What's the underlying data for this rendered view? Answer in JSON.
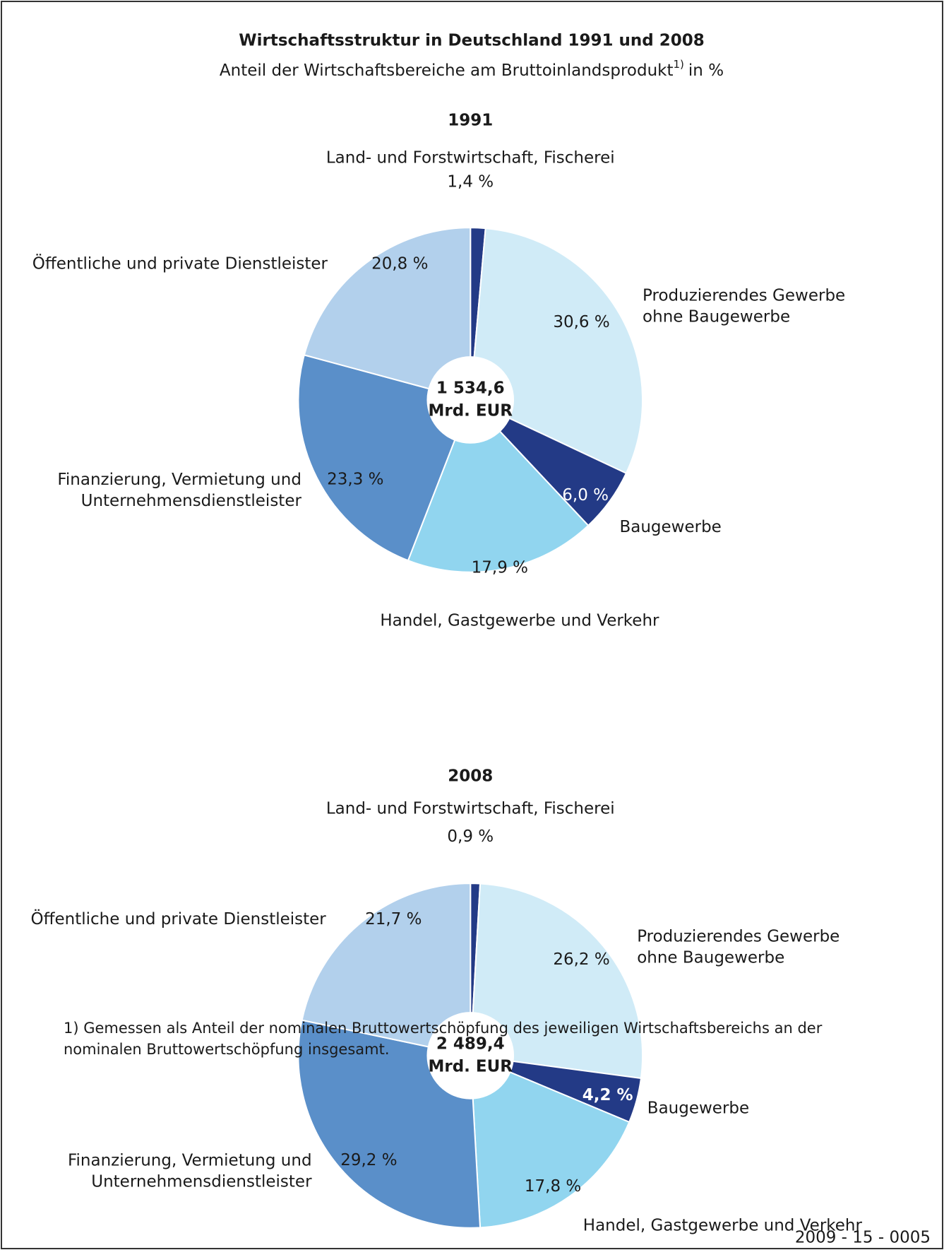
{
  "title": "Wirtschaftsstruktur in Deutschland 1991 und 2008",
  "subtitle": {
    "text": "Anteil der Wirtschaftsbereiche am Bruttoinlandsprodukt",
    "footnote_mark": "1)",
    "unit": "in %"
  },
  "chart_data": [
    {
      "type": "pie",
      "title": "1991",
      "categories": [
        "Land- und Forstwirtschaft, Fischerei",
        "Produzierendes Gewerbe\nohne Baugewerbe",
        "Baugewerbe",
        "Handel, Gastgewerbe und Verkehr",
        "Finanzierung, Vermietung und\nUnternehmensdienstleister",
        "Öffentliche und private Dienstleister"
      ],
      "values": [
        1.4,
        30.6,
        6.0,
        17.9,
        23.3,
        20.8
      ],
      "value_labels": [
        "1,4 %",
        "30,6 %",
        "6,0 %",
        "17,9 %",
        "23,3 %",
        "20,8 %"
      ],
      "colors": [
        "#233a86",
        "#d0ebf7",
        "#233a86",
        "#91d5ef",
        "#5a8fc9",
        "#b2d0ec"
      ],
      "center_label": [
        "1 534,6",
        "Mrd. EUR"
      ]
    },
    {
      "type": "pie",
      "title": "2008",
      "categories": [
        "Land- und Forstwirtschaft, Fischerei",
        "Produzierendes Gewerbe\nohne Baugewerbe",
        "Baugewerbe",
        "Handel, Gastgewerbe und Verkehr",
        "Finanzierung, Vermietung und\nUnternehmensdienstleister",
        "Öffentliche und private Dienstleister"
      ],
      "values": [
        0.9,
        26.2,
        4.2,
        17.8,
        29.2,
        21.7
      ],
      "value_labels": [
        "0,9 %",
        "26,2 %",
        "4,2 %",
        "17,8 %",
        "29,2 %",
        "21,7 %"
      ],
      "colors": [
        "#233a86",
        "#d0ebf7",
        "#233a86",
        "#91d5ef",
        "#5a8fc9",
        "#b2d0ec"
      ],
      "center_label": [
        "2 489,4",
        "Mrd. EUR"
      ]
    }
  ],
  "footnote": "1) Gemessen als Anteil der nominalen Bruttowertschöpfung des jeweiligen Wirtschaftsbereichs an der nominalen Bruttowertschöpfung insgesamt.",
  "code": "2009 - 15 - 0005"
}
